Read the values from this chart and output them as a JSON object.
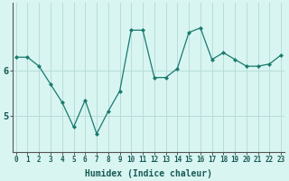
{
  "x": [
    0,
    1,
    2,
    3,
    4,
    5,
    6,
    7,
    8,
    9,
    10,
    11,
    12,
    13,
    14,
    15,
    16,
    17,
    18,
    19,
    20,
    21,
    22,
    23
  ],
  "y": [
    6.3,
    6.3,
    6.1,
    5.7,
    5.3,
    4.75,
    5.35,
    4.6,
    5.1,
    5.55,
    6.9,
    6.9,
    5.85,
    5.85,
    6.05,
    6.85,
    6.95,
    6.25,
    6.4,
    6.25,
    6.1,
    6.1,
    6.15,
    6.35
  ],
  "line_color": "#1a7a6e",
  "marker": "D",
  "marker_size": 2.0,
  "bg_color": "#d8f5f2",
  "grid_color": "#b8ddd8",
  "xlabel": "Humidex (Indice chaleur)",
  "ytick_labels": [
    "5",
    "6"
  ],
  "ytick_positions": [
    5.0,
    6.0
  ],
  "ylim": [
    4.2,
    7.5
  ],
  "xlim": [
    -0.3,
    23.3
  ],
  "figsize": [
    3.2,
    2.0
  ],
  "dpi": 100
}
